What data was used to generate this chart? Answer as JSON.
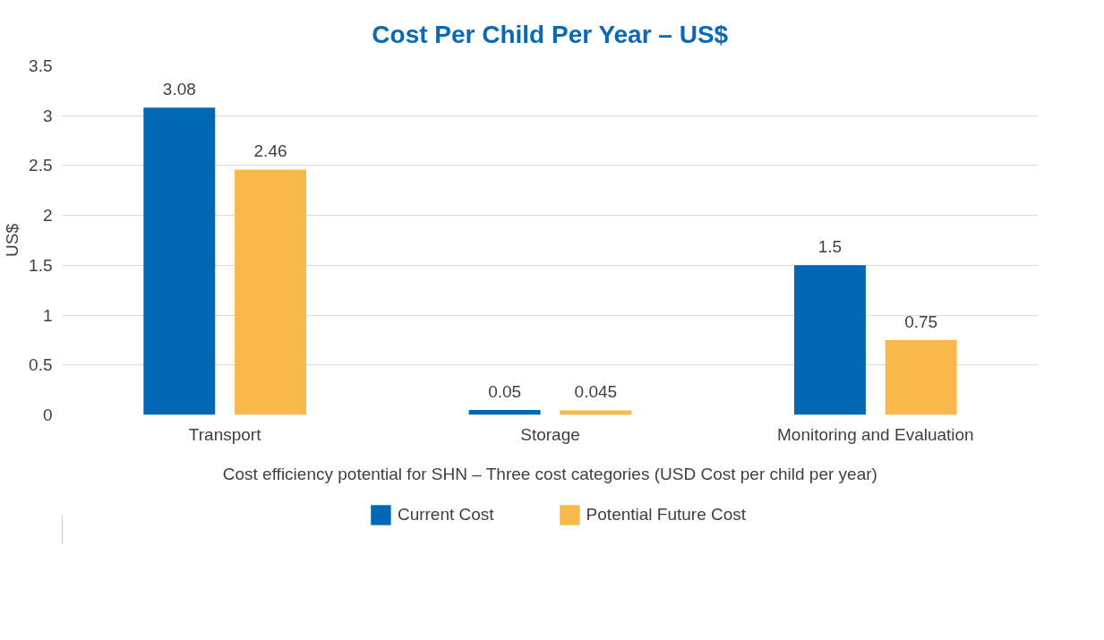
{
  "chart_data": {
    "type": "bar",
    "title": "Cost Per Child Per Year – US$",
    "xlabel": "Cost efficiency potential for SHN – Three cost categories (USD Cost per child per year)",
    "ylabel": "US$",
    "categories": [
      "Transport",
      "Storage",
      "Monitoring and Evaluation"
    ],
    "series": [
      {
        "name": "Current Cost",
        "color": "#0068b4",
        "values": [
          3.08,
          0.05,
          1.5
        ]
      },
      {
        "name": "Potential Future Cost",
        "color": "#f9b84a",
        "values": [
          2.46,
          0.045,
          0.75
        ]
      }
    ],
    "ylim": [
      0,
      3.5
    ],
    "yticks": [
      0,
      0.5,
      1,
      1.5,
      2,
      2.5,
      3,
      3.5
    ],
    "grid": "y",
    "legend": "bottom",
    "data_labels": true
  }
}
